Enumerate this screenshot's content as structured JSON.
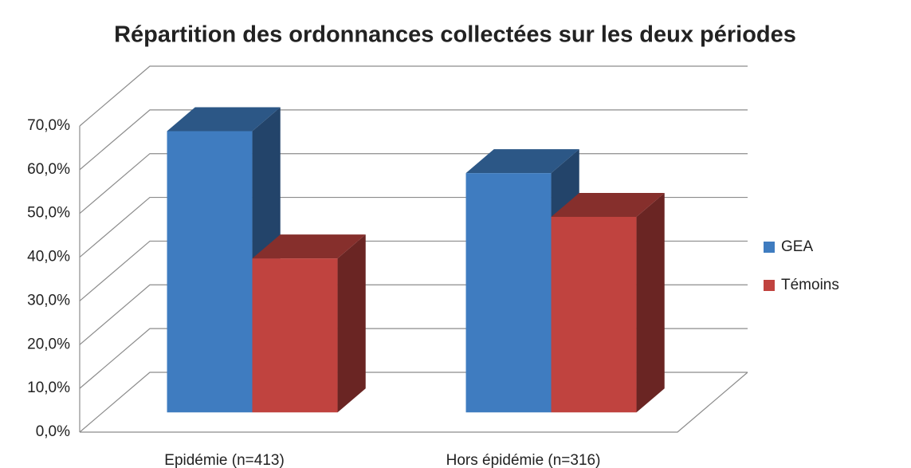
{
  "chart_data": {
    "type": "bar3d",
    "title": "Répartition des ordonnances collectées sur les deux périodes",
    "categories": [
      "Epidémie (n=413)",
      "Hors épidémie (n=316)"
    ],
    "series": [
      {
        "name": "GEA",
        "color": "#3f7cc0",
        "values": [
          64.3,
          54.7
        ]
      },
      {
        "name": "Témoins",
        "color": "#c0433f",
        "values": [
          35.2,
          44.7
        ]
      }
    ],
    "ylim": [
      0,
      70
    ],
    "yticks": [
      {
        "value": 0,
        "label": "0,0%"
      },
      {
        "value": 10,
        "label": "10,0%"
      },
      {
        "value": 20,
        "label": "20,0%"
      },
      {
        "value": 30,
        "label": "30,0%"
      },
      {
        "value": 40,
        "label": "40,0%"
      },
      {
        "value": 50,
        "label": "50,0%"
      },
      {
        "value": 60,
        "label": "60,0%"
      },
      {
        "value": 70,
        "label": "70,0%"
      }
    ],
    "grid": true,
    "legend": "right"
  }
}
